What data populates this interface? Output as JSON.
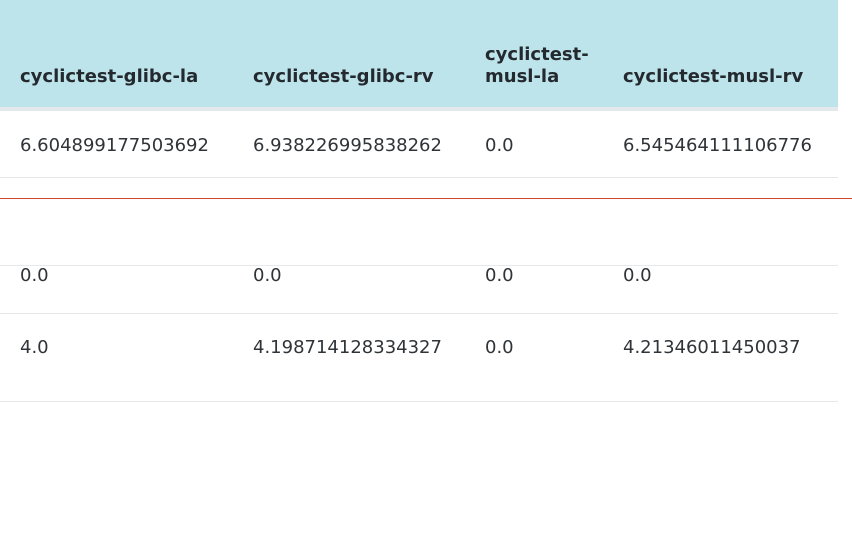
{
  "table": {
    "headers": [
      "cyclictest-glibc-la",
      "cyclictest-glibc-rv",
      "cyclictest-musl-la",
      "cyclictest-musl-rv"
    ],
    "rows": [
      [
        "6.604899177503692",
        "6.938226995838262",
        "0.0",
        "6.545464111106776"
      ],
      [
        "0.0",
        "0.0",
        "0.0",
        "0.0"
      ],
      [
        "4.0",
        "4.198714128334327",
        "0.0",
        "4.21346011450037"
      ]
    ]
  },
  "colors": {
    "header_background": "#bde4ea",
    "highlight_rule": "#d4442f",
    "divider": "#e6e8ea"
  }
}
